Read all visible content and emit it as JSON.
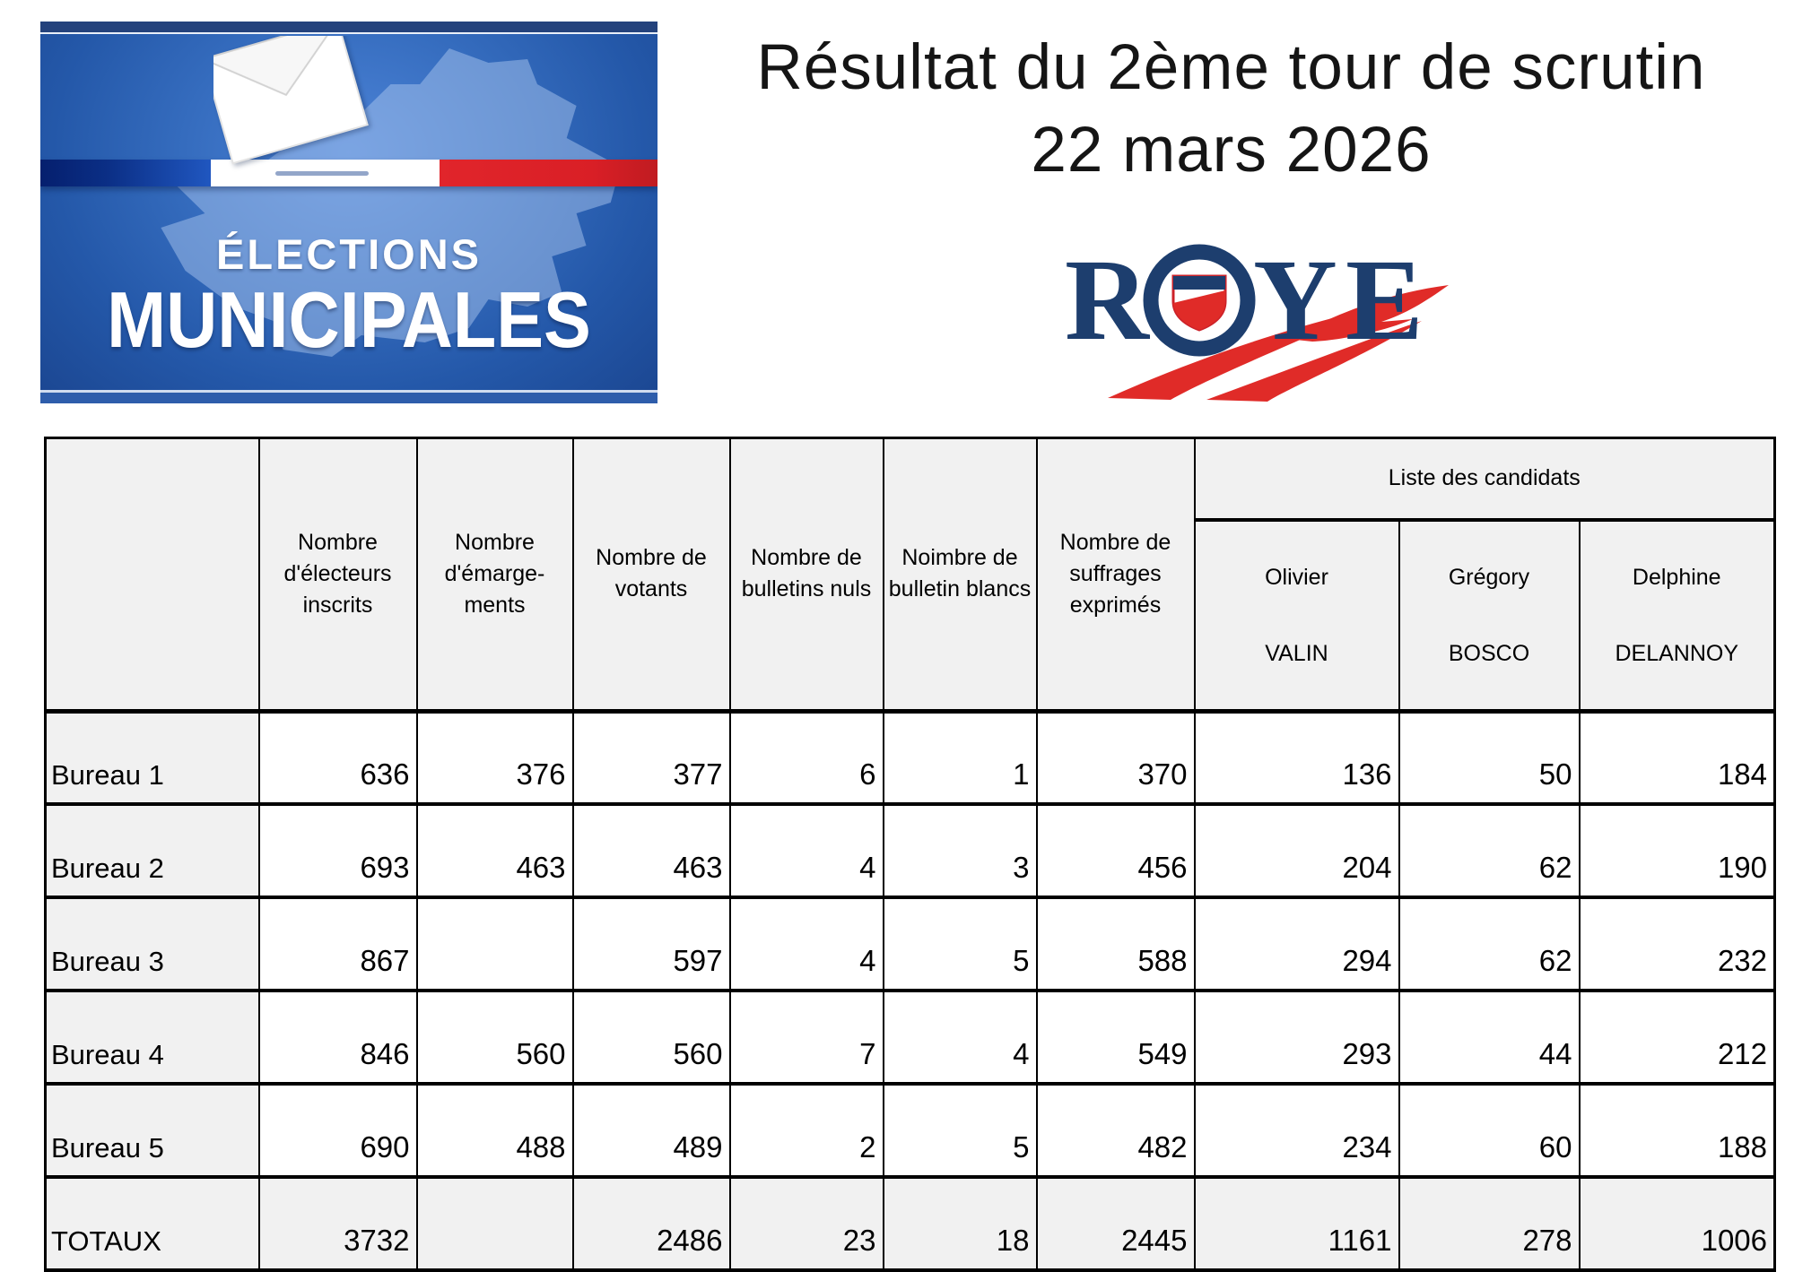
{
  "banner": {
    "top_label": "ÉLECTIONS",
    "bottom_label": "MUNICIPALES",
    "colors": {
      "stripe_blue": "#0b2f86",
      "stripe_white": "#ffffff",
      "stripe_red": "#d91f26",
      "background_blue": "#2458a9"
    }
  },
  "page_title": {
    "line1": "Résultat du 2ème tour de scrutin",
    "line2": "22 mars 2026"
  },
  "roye_logo": {
    "letter_r": "R",
    "letter_y": "Y",
    "letter_e": "E",
    "navy": "#1d3e6e",
    "red": "#e02b28"
  },
  "results_table": {
    "corner_label": "",
    "stat_headers": [
      "Nombre\nd'électeurs\ninscrits",
      "Nombre\nd'émarge-\nments",
      "Nombre de\nvotants",
      "Nombre de\nbulletins nuls",
      "Noimbre de\nbulletin blancs",
      "Nombre de\nsuffrages\nexprimés"
    ],
    "candidates_group_label": "Liste des candidats",
    "candidates": [
      {
        "first_name": "Olivier",
        "last_name": "VALIN"
      },
      {
        "first_name": "Grégory",
        "last_name": "BOSCO"
      },
      {
        "first_name": "Delphine",
        "last_name": "DELANNOY"
      }
    ],
    "rows": [
      {
        "label": "Bureau 1",
        "values": [
          636,
          376,
          377,
          6,
          1,
          370,
          136,
          50,
          184
        ],
        "total": false
      },
      {
        "label": "Bureau 2",
        "values": [
          693,
          463,
          463,
          4,
          3,
          456,
          204,
          62,
          190
        ],
        "total": false
      },
      {
        "label": "Bureau 3",
        "values": [
          867,
          null,
          597,
          4,
          5,
          588,
          294,
          62,
          232
        ],
        "total": false
      },
      {
        "label": "Bureau 4",
        "values": [
          846,
          560,
          560,
          7,
          4,
          549,
          293,
          44,
          212
        ],
        "total": false
      },
      {
        "label": "Bureau 5",
        "values": [
          690,
          488,
          489,
          2,
          5,
          482,
          234,
          60,
          188
        ],
        "total": false
      },
      {
        "label": "TOTAUX",
        "values": [
          3732,
          null,
          2486,
          23,
          18,
          2445,
          1161,
          278,
          1006
        ],
        "total": true
      }
    ]
  }
}
